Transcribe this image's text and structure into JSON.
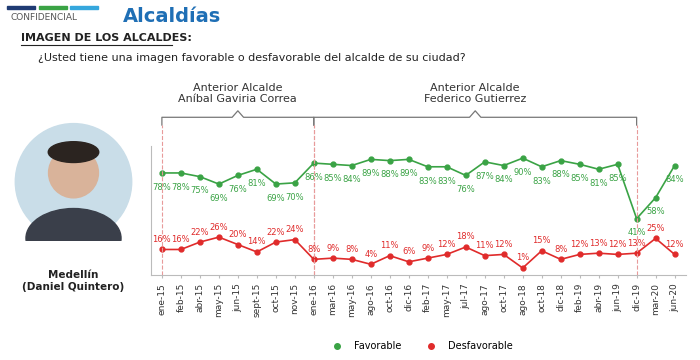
{
  "header": {
    "confidential": "CONFIDENCIAL",
    "section": "Alcaldías",
    "heading": "IMAGEN DE LOS ALCALDES:",
    "question": "¿Usted tiene una imagen favorable o desfavorable del alcalde de su ciudad?"
  },
  "subject": "Medellín\n(Daniel Quintero)",
  "chart_data": {
    "type": "line",
    "categories": [
      "ene-15",
      "feb-15",
      "abr-15",
      "may-15",
      "jun-15",
      "sept-15",
      "oct-15",
      "nov-15",
      "ene-16",
      "mar-16",
      "may-16",
      "ago-16",
      "oct-16",
      "dic-16",
      "feb-17",
      "may-17",
      "jul-17",
      "ago-17",
      "oct-17",
      "ago-18",
      "oct-18",
      "dic-18",
      "feb-19",
      "abr-19",
      "jun-19",
      "dic-19",
      "mar-20",
      "jun-20"
    ],
    "series": [
      {
        "name": "Favorable",
        "color": "#3aa345",
        "marker": "o",
        "line_style": "solid",
        "values": [
          78,
          78,
          75,
          69,
          76,
          81,
          69,
          70,
          86,
          85,
          84,
          89,
          88,
          89,
          83,
          83,
          76,
          87,
          84,
          90,
          83,
          88,
          85,
          81,
          85,
          41,
          58,
          84
        ],
        "value_labels": [
          "78%",
          "78%",
          "75%",
          "69%",
          "76%",
          "81%",
          "69%",
          "70%",
          "86%",
          "85%",
          "84%",
          "89%",
          "88%",
          "89%",
          "83%",
          "83%",
          "76%",
          "87%",
          "84%",
          "90%",
          "83%",
          "88%",
          "85%",
          "81%",
          "85%",
          "41%",
          "58%",
          "84%"
        ]
      },
      {
        "name": "Desfavorable",
        "color": "#e02b2b",
        "marker": "o",
        "line_style": "solid",
        "values": [
          16,
          16,
          22,
          26,
          20,
          14,
          22,
          24,
          8,
          9,
          8,
          4,
          11,
          6,
          9,
          12,
          18,
          11,
          12,
          1,
          15,
          8,
          12,
          13,
          12,
          13,
          25,
          12
        ],
        "value_labels": [
          "16%",
          "16%",
          "22%",
          "26%",
          "20%",
          "14%",
          "22%",
          "24%",
          "8%",
          "9%",
          "8%",
          "4%",
          "11%",
          "6%",
          "9%",
          "12%",
          "18%",
          "11%",
          "12%",
          "1%",
          "15%",
          "8%",
          "12%",
          "13%",
          "12%",
          "13%",
          "25%",
          "12%"
        ]
      }
    ],
    "annotations": [
      {
        "text": "Anterior Alcalde\nAníbal Gaviria Correa",
        "from": "ene-15",
        "to": "ene-16"
      },
      {
        "text": "Anterior Alcalde\nFederico Gutierrez",
        "from": "ene-16",
        "to": "dic-19"
      }
    ],
    "ylim": [
      -5,
      100
    ],
    "yticks": [],
    "tick_labels": "x",
    "grid": false,
    "data_labels": true,
    "legend": "lower center"
  }
}
